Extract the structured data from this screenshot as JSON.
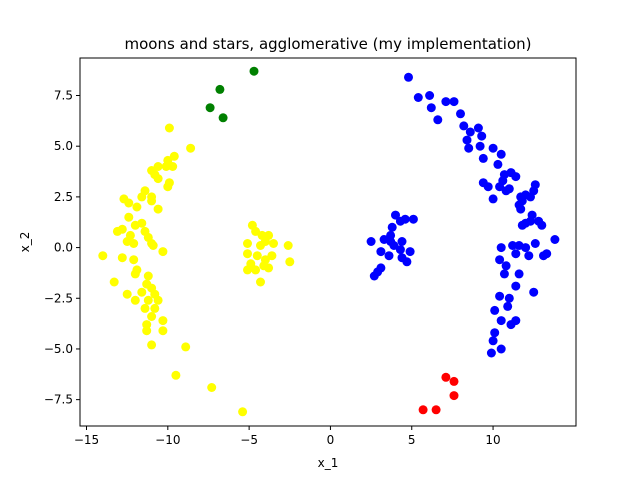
{
  "chart_data": {
    "type": "scatter",
    "title": "moons and stars, agglomerative (my implementation)",
    "xlabel": "x_1",
    "ylabel": "x_2",
    "xlim": [
      -15.4,
      15.1
    ],
    "ylim": [
      -8.8,
      9.35
    ],
    "xticks": [
      -15,
      -10,
      -5,
      0,
      5,
      10
    ],
    "yticks": [
      -7.5,
      -5.0,
      -2.5,
      0.0,
      2.5,
      5.0,
      7.5
    ],
    "xtick_labels": [
      "−15",
      "−10",
      "−5",
      "0",
      "5",
      "10"
    ],
    "ytick_labels": [
      "−7.5",
      "−5.0",
      "−2.5",
      "0.0",
      "2.5",
      "5.0",
      "7.5"
    ],
    "grid": false,
    "legend": "none",
    "clusters": [
      {
        "color": "#ffff00",
        "points": [
          [
            -9.9,
            5.9
          ],
          [
            -8.6,
            4.9
          ],
          [
            -9.6,
            4.5
          ],
          [
            -10.0,
            4.3
          ],
          [
            -10.6,
            4.0
          ],
          [
            -10.1,
            4.0
          ],
          [
            -9.7,
            4.0
          ],
          [
            -10.8,
            3.6
          ],
          [
            -11.0,
            3.8
          ],
          [
            -10.6,
            3.4
          ],
          [
            -9.9,
            3.2
          ],
          [
            -10.0,
            3.0
          ],
          [
            -11.4,
            2.8
          ],
          [
            -11.6,
            2.5
          ],
          [
            -11.0,
            2.5
          ],
          [
            -11.0,
            2.3
          ],
          [
            -12.7,
            2.4
          ],
          [
            -12.4,
            2.2
          ],
          [
            -11.9,
            2.0
          ],
          [
            -10.6,
            1.9
          ],
          [
            -12.4,
            1.5
          ],
          [
            -11.6,
            1.2
          ],
          [
            -12.0,
            1.1
          ],
          [
            -12.8,
            0.9
          ],
          [
            -13.1,
            0.8
          ],
          [
            -12.3,
            0.6
          ],
          [
            -11.4,
            0.8
          ],
          [
            -11.2,
            0.5
          ],
          [
            -12.5,
            0.3
          ],
          [
            -12.1,
            0.2
          ],
          [
            -11.0,
            0.2
          ],
          [
            -10.9,
            0.1
          ],
          [
            -10.3,
            -0.2
          ],
          [
            -14.0,
            -0.4
          ],
          [
            -12.1,
            -0.6
          ],
          [
            -12.8,
            -0.5
          ],
          [
            -11.9,
            -1.1
          ],
          [
            -12.0,
            -1.3
          ],
          [
            -11.2,
            -1.4
          ],
          [
            -13.3,
            -1.7
          ],
          [
            -11.3,
            -1.8
          ],
          [
            -11.0,
            -2.0
          ],
          [
            -10.8,
            -2.3
          ],
          [
            -12.5,
            -2.3
          ],
          [
            -11.6,
            -2.2
          ],
          [
            -11.2,
            -2.6
          ],
          [
            -10.6,
            -2.6
          ],
          [
            -12.0,
            -2.6
          ],
          [
            -11.4,
            -3.0
          ],
          [
            -10.8,
            -3.0
          ],
          [
            -11.0,
            -3.4
          ],
          [
            -11.3,
            -3.8
          ],
          [
            -10.3,
            -3.6
          ],
          [
            -11.3,
            -4.1
          ],
          [
            -10.3,
            -4.1
          ],
          [
            -11.0,
            -4.8
          ],
          [
            -8.9,
            -4.9
          ],
          [
            -9.5,
            -6.3
          ],
          [
            -7.3,
            -6.9
          ],
          [
            -5.4,
            -8.1
          ],
          [
            -4.8,
            1.1
          ],
          [
            -4.6,
            0.8
          ],
          [
            -4.2,
            0.6
          ],
          [
            -3.8,
            0.6
          ],
          [
            -4.0,
            0.3
          ],
          [
            -3.5,
            0.2
          ],
          [
            -4.3,
            0.1
          ],
          [
            -5.1,
            0.2
          ],
          [
            -2.6,
            0.1
          ],
          [
            -5.1,
            -0.3
          ],
          [
            -4.5,
            -0.4
          ],
          [
            -4.9,
            -0.8
          ],
          [
            -4.0,
            -0.6
          ],
          [
            -3.6,
            -0.4
          ],
          [
            -2.5,
            -0.7
          ],
          [
            -4.1,
            -0.9
          ],
          [
            -3.8,
            -1.0
          ],
          [
            -5.1,
            -1.1
          ],
          [
            -4.6,
            -1.1
          ],
          [
            -4.3,
            -1.7
          ]
        ]
      },
      {
        "color": "#0000ff",
        "points": [
          [
            4.8,
            8.4
          ],
          [
            5.4,
            7.4
          ],
          [
            6.1,
            7.5
          ],
          [
            7.1,
            7.2
          ],
          [
            7.6,
            7.2
          ],
          [
            6.2,
            6.9
          ],
          [
            8.0,
            6.6
          ],
          [
            6.6,
            6.3
          ],
          [
            8.2,
            6.0
          ],
          [
            9.1,
            5.9
          ],
          [
            8.6,
            5.7
          ],
          [
            9.3,
            5.5
          ],
          [
            8.4,
            5.3
          ],
          [
            8.5,
            4.9
          ],
          [
            9.2,
            5.0
          ],
          [
            10.0,
            4.9
          ],
          [
            10.5,
            4.6
          ],
          [
            9.4,
            4.4
          ],
          [
            10.3,
            4.1
          ],
          [
            11.1,
            3.7
          ],
          [
            10.7,
            3.6
          ],
          [
            11.4,
            3.5
          ],
          [
            10.6,
            3.3
          ],
          [
            9.4,
            3.2
          ],
          [
            9.7,
            3.0
          ],
          [
            10.4,
            3.0
          ],
          [
            11.0,
            2.9
          ],
          [
            10.8,
            2.8
          ],
          [
            12.6,
            3.1
          ],
          [
            12.0,
            2.6
          ],
          [
            12.5,
            2.8
          ],
          [
            11.7,
            2.5
          ],
          [
            11.8,
            2.3
          ],
          [
            12.3,
            2.5
          ],
          [
            10.0,
            2.4
          ],
          [
            11.6,
            2.1
          ],
          [
            11.7,
            1.9
          ],
          [
            12.4,
            1.6
          ],
          [
            12.3,
            1.3
          ],
          [
            12.0,
            1.2
          ],
          [
            11.8,
            1.1
          ],
          [
            12.8,
            1.3
          ],
          [
            13.0,
            1.1
          ],
          [
            4.0,
            1.6
          ],
          [
            3.8,
            1.0
          ],
          [
            4.6,
            1.4
          ],
          [
            4.3,
            1.3
          ],
          [
            5.1,
            1.4
          ],
          [
            3.7,
            0.6
          ],
          [
            3.3,
            0.4
          ],
          [
            3.7,
            0.3
          ],
          [
            2.5,
            0.3
          ],
          [
            4.4,
            0.3
          ],
          [
            3.9,
            0.1
          ],
          [
            4.3,
            -0.1
          ],
          [
            3.1,
            -0.2
          ],
          [
            3.6,
            -0.4
          ],
          [
            4.9,
            -0.2
          ],
          [
            4.4,
            -0.5
          ],
          [
            4.7,
            -0.7
          ],
          [
            3.1,
            -1.0
          ],
          [
            2.9,
            -1.2
          ],
          [
            2.7,
            -1.4
          ],
          [
            10.5,
            0.0
          ],
          [
            11.2,
            0.1
          ],
          [
            11.6,
            0.1
          ],
          [
            12.0,
            0.0
          ],
          [
            13.8,
            0.4
          ],
          [
            12.6,
            0.2
          ],
          [
            11.4,
            -0.3
          ],
          [
            12.2,
            -0.4
          ],
          [
            13.1,
            -0.4
          ],
          [
            13.3,
            -0.3
          ],
          [
            10.4,
            -0.6
          ],
          [
            10.8,
            -0.9
          ],
          [
            10.7,
            -1.3
          ],
          [
            11.6,
            -1.3
          ],
          [
            11.4,
            -1.9
          ],
          [
            12.5,
            -2.2
          ],
          [
            11.0,
            -2.5
          ],
          [
            10.4,
            -2.4
          ],
          [
            10.9,
            -2.9
          ],
          [
            10.1,
            -3.1
          ],
          [
            10.5,
            -3.6
          ],
          [
            11.1,
            -3.8
          ],
          [
            11.4,
            -3.6
          ],
          [
            10.1,
            -4.2
          ],
          [
            10.0,
            -4.6
          ],
          [
            10.5,
            -5.0
          ],
          [
            9.9,
            -5.2
          ]
        ]
      },
      {
        "color": "#008000",
        "points": [
          [
            -4.7,
            8.7
          ],
          [
            -6.8,
            7.8
          ],
          [
            -7.4,
            6.9
          ],
          [
            -6.6,
            6.4
          ]
        ]
      },
      {
        "color": "#ff0000",
        "points": [
          [
            7.1,
            -6.4
          ],
          [
            7.6,
            -6.6
          ],
          [
            7.6,
            -7.3
          ],
          [
            5.7,
            -8.0
          ],
          [
            6.5,
            -8.0
          ]
        ]
      }
    ]
  }
}
